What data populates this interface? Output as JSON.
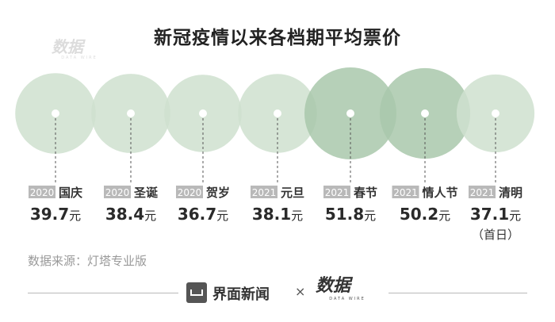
{
  "title": "新冠疫情以来各档期平均票价",
  "watermark": {
    "main": "数据",
    "sub": "DATA WIRE"
  },
  "source": "数据来源：灯塔专业版",
  "footer": {
    "name": "界面新闻",
    "separator": "×",
    "brand": "数据",
    "brand_sub": "DATA WIRE"
  },
  "colors": {
    "circle_light": "#cfe0cf",
    "circle_dark": "#a9c8ab",
    "year_tag": "#b9b9b9",
    "text": "#2a2a2a"
  },
  "chart_data": {
    "type": "bubble",
    "title": "新冠疫情以来各档期平均票价",
    "categories": [
      {
        "year": "2020",
        "name": "国庆",
        "value": 39.7,
        "unit": "元",
        "note": ""
      },
      {
        "year": "2020",
        "name": "圣诞",
        "value": 38.4,
        "unit": "元",
        "note": ""
      },
      {
        "year": "2020",
        "name": "贺岁",
        "value": 36.7,
        "unit": "元",
        "note": ""
      },
      {
        "year": "2021",
        "name": "元旦",
        "value": 38.1,
        "unit": "元",
        "note": ""
      },
      {
        "year": "2021",
        "name": "春节",
        "value": 51.8,
        "unit": "元",
        "note": ""
      },
      {
        "year": "2021",
        "name": "情人节",
        "value": 50.2,
        "unit": "元",
        "note": ""
      },
      {
        "year": "2021",
        "name": "清明",
        "value": 37.1,
        "unit": "元",
        "note": "（首日）"
      }
    ]
  }
}
